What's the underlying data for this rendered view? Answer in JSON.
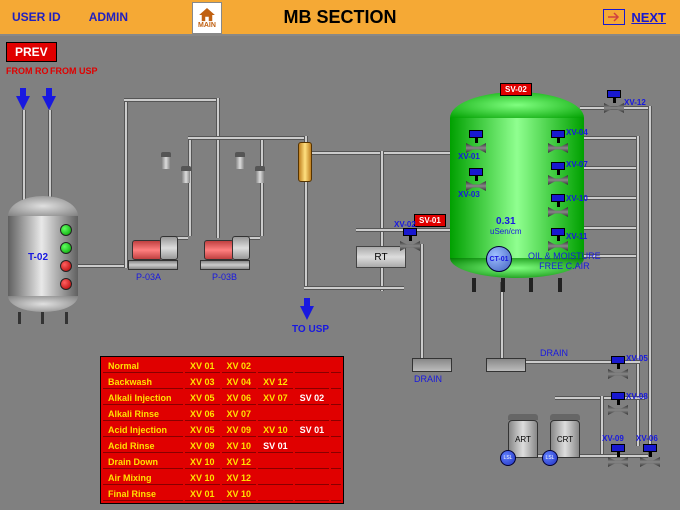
{
  "header": {
    "user_id": "USER ID",
    "admin": "ADMIN",
    "main_btn": "MAIN",
    "title": "MB SECTION",
    "next": "NEXT"
  },
  "nav": {
    "prev": "PREV"
  },
  "inlets": {
    "from_ro": "FROM RO",
    "from_usp": "FROM USP",
    "to_usp": "TO USP"
  },
  "colors": {
    "header_bg": "#f5a935",
    "canvas_bg": "#808080",
    "red": "#e00000",
    "blue": "#1818e0",
    "green": "#00a000",
    "table_text": "#ffe000"
  },
  "tanks": {
    "t02": {
      "label": "T-02"
    },
    "p03a": "P-03A",
    "p03b": "P-03B",
    "art": "ART",
    "crt": "CRT",
    "ct01": "CT-01"
  },
  "readout": {
    "value": "0.31",
    "unit": "uSen/cm"
  },
  "labels": {
    "rt": "RT",
    "oil_moisture": "OIL & MOISTURE\nFREE C.AIR",
    "drain": "DRAIN",
    "lsl": "LSL"
  },
  "red_tags": {
    "sv01": "SV-01",
    "sv02": "SV-02"
  },
  "valves": {
    "xv01": "XV-01",
    "xv02": "XV-02",
    "xv03": "XV-03",
    "xv04": "XV-04",
    "xv05": "XV-05",
    "xv06": "XV-06",
    "xv07": "XV-07",
    "xv08": "XV-08",
    "xv09": "XV-09",
    "xv10": "XV-10",
    "xv11": "XV-11",
    "xv12": "XV-12"
  },
  "mode_table": [
    {
      "mode": "Normal",
      "cols": [
        "XV 01",
        "XV 02",
        "",
        "",
        ""
      ]
    },
    {
      "mode": "Backwash",
      "cols": [
        "XV 03",
        "XV 04",
        "XV 12",
        "",
        ""
      ]
    },
    {
      "mode": "Alkali Injection",
      "cols": [
        "XV 05",
        "XV 06",
        "XV 07",
        "SV 02",
        ""
      ]
    },
    {
      "mode": "Alkali Rinse",
      "cols": [
        "XV 06",
        "XV 07",
        "",
        "",
        ""
      ]
    },
    {
      "mode": "Acid Injection",
      "cols": [
        "XV 05",
        "XV 09",
        "XV 10",
        "SV 01",
        ""
      ]
    },
    {
      "mode": "Acid Rinse",
      "cols": [
        "XV 09",
        "XV 10",
        "SV 01",
        "",
        ""
      ]
    },
    {
      "mode": "Drain Down",
      "cols": [
        "XV 10",
        "XV 12",
        "",
        "",
        ""
      ]
    },
    {
      "mode": "Air Mixing",
      "cols": [
        "XV 10",
        "XV 12",
        "",
        "",
        ""
      ]
    },
    {
      "mode": "Final Rinse",
      "cols": [
        "XV 01",
        "XV 10",
        "",
        "",
        ""
      ]
    }
  ]
}
